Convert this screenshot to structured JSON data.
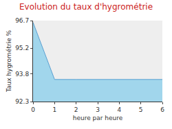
{
  "chart_data": {
    "type": "area",
    "title": "Evolution du taux d'hygrométrie",
    "x_label": "heure par heure",
    "y_label": "Taux hygrométrie %",
    "x": [
      0,
      1,
      2,
      3,
      4,
      5,
      6
    ],
    "values": [
      96.6,
      93.5,
      93.5,
      93.5,
      93.5,
      93.5,
      93.5
    ],
    "color": "#5a9fd0",
    "xlim": [
      0,
      6
    ],
    "xticks": [
      0,
      1,
      2,
      3,
      4,
      5,
      6
    ],
    "ylim": [
      92.3,
      96.7
    ],
    "yticks": [
      92.3,
      93.8,
      95.2,
      96.7
    ],
    "grid": false
  }
}
